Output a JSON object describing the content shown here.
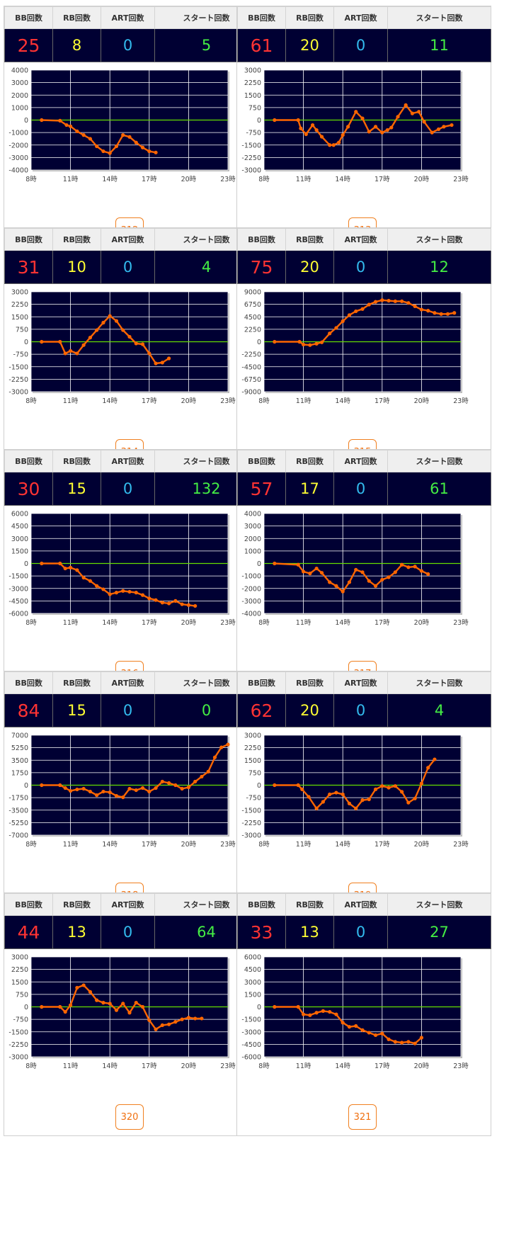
{
  "headers": {
    "bb": "BB回数",
    "rb": "RB回数",
    "art": "ART回数",
    "start": "スタート回数"
  },
  "x_ticks": [
    "8時",
    "11時",
    "14時",
    "17時",
    "20時",
    "23時"
  ],
  "colors": {
    "plot_bg": "#000033",
    "line": "#ff6600",
    "zero": "#66dd00",
    "grid": "#ffffff"
  },
  "machines": [
    {
      "id": "312",
      "bb": "25",
      "rb": "8",
      "art": "0",
      "start": "5",
      "chart_data": {
        "type": "line",
        "ylim": [
          -4000,
          4000
        ],
        "yticks": [
          4000,
          3000,
          2000,
          1000,
          0,
          -1000,
          -2000,
          -3000,
          -4000
        ],
        "x": [
          8.8,
          10.2,
          10.7,
          11,
          11.5,
          12,
          12.5,
          13,
          13.5,
          14,
          14.5,
          15,
          15.5,
          16,
          16.5,
          17,
          17.5
        ],
        "y": [
          0,
          -50,
          -400,
          -500,
          -900,
          -1200,
          -1500,
          -2100,
          -2500,
          -2650,
          -2100,
          -1200,
          -1350,
          -1800,
          -2200,
          -2500,
          -2600
        ]
      }
    },
    {
      "id": "313",
      "bb": "61",
      "rb": "20",
      "art": "0",
      "start": "11",
      "chart_data": {
        "type": "line",
        "ylim": [
          -3000,
          3000
        ],
        "yticks": [
          3000,
          2250,
          1500,
          750,
          0,
          -750,
          -1500,
          -2250,
          -3000
        ],
        "x": [
          8.8,
          10.6,
          10.8,
          11.2,
          11.7,
          12,
          12.4,
          13,
          13.3,
          13.7,
          14,
          14.4,
          15,
          15.5,
          16,
          16.5,
          17,
          17.4,
          17.7,
          18.2,
          18.8,
          19.3,
          19.8,
          20.2,
          20.8,
          21.3,
          21.7,
          22.3
        ],
        "y": [
          0,
          0,
          -500,
          -850,
          -300,
          -600,
          -1000,
          -1500,
          -1500,
          -1350,
          -900,
          -400,
          500,
          100,
          -700,
          -400,
          -750,
          -600,
          -450,
          200,
          900,
          400,
          500,
          -100,
          -750,
          -550,
          -400,
          -300
        ]
      }
    },
    {
      "id": "314",
      "bb": "31",
      "rb": "10",
      "art": "0",
      "start": "4",
      "chart_data": {
        "type": "line",
        "ylim": [
          -3000,
          3000
        ],
        "yticks": [
          3000,
          2250,
          1500,
          750,
          0,
          -750,
          -1500,
          -2250,
          -3000
        ],
        "x": [
          8.8,
          10.2,
          10.6,
          11,
          11.5,
          12,
          12.5,
          13,
          13.5,
          14,
          14.5,
          15,
          15.5,
          16,
          16.5,
          17,
          17.5,
          18,
          18.5
        ],
        "y": [
          0,
          0,
          -700,
          -550,
          -700,
          -200,
          250,
          700,
          1150,
          1550,
          1250,
          700,
          300,
          -100,
          -150,
          -700,
          -1300,
          -1250,
          -1000
        ]
      }
    },
    {
      "id": "315",
      "bb": "75",
      "rb": "20",
      "art": "0",
      "start": "12",
      "chart_data": {
        "type": "line",
        "ylim": [
          -9000,
          9000
        ],
        "yticks": [
          9000,
          6750,
          4500,
          2250,
          0,
          -2250,
          -4500,
          -6750,
          -9000
        ],
        "x": [
          8.8,
          10.7,
          11,
          11.5,
          12,
          12.4,
          13,
          13.5,
          14,
          14.5,
          15,
          15.5,
          16,
          16.5,
          17,
          17.5,
          18,
          18.5,
          19,
          19.5,
          20,
          20.5,
          21,
          21.5,
          22,
          22.5
        ],
        "y": [
          0,
          0,
          -500,
          -600,
          -350,
          -100,
          1500,
          2500,
          3700,
          4800,
          5500,
          5900,
          6700,
          7200,
          7500,
          7400,
          7300,
          7300,
          7000,
          6400,
          5800,
          5600,
          5200,
          5000,
          5000,
          5200
        ]
      }
    },
    {
      "id": "316",
      "bb": "30",
      "rb": "15",
      "art": "0",
      "start": "132",
      "chart_data": {
        "type": "line",
        "ylim": [
          -6000,
          6000
        ],
        "yticks": [
          6000,
          4500,
          3000,
          1500,
          0,
          -1500,
          -3000,
          -4500,
          -6000
        ],
        "x": [
          8.8,
          10.2,
          10.6,
          11,
          11.5,
          12,
          12.5,
          13,
          13.5,
          14,
          14.5,
          15,
          15.5,
          16,
          16.5,
          17,
          17.5,
          18,
          18.5,
          19,
          19.5,
          20,
          20.5
        ],
        "y": [
          0,
          0,
          -600,
          -500,
          -800,
          -1700,
          -2100,
          -2700,
          -3100,
          -3700,
          -3500,
          -3300,
          -3400,
          -3500,
          -3800,
          -4200,
          -4400,
          -4700,
          -4800,
          -4500,
          -4900,
          -5000,
          -5100
        ]
      }
    },
    {
      "id": "317",
      "bb": "57",
      "rb": "17",
      "art": "0",
      "start": "61",
      "chart_data": {
        "type": "line",
        "ylim": [
          -4000,
          4000
        ],
        "yticks": [
          4000,
          3000,
          2000,
          1000,
          0,
          -1000,
          -2000,
          -3000,
          -4000
        ],
        "x": [
          8.8,
          10.6,
          11,
          11.5,
          12,
          12.4,
          13,
          13.5,
          14,
          14.5,
          15,
          15.5,
          16,
          16.5,
          17,
          17.5,
          18,
          18.5,
          19,
          19.5,
          20,
          20.5
        ],
        "y": [
          0,
          -100,
          -650,
          -800,
          -400,
          -750,
          -1500,
          -1800,
          -2250,
          -1500,
          -500,
          -700,
          -1400,
          -1800,
          -1300,
          -1100,
          -700,
          -100,
          -300,
          -250,
          -600,
          -850
        ]
      }
    },
    {
      "id": "318",
      "bb": "84",
      "rb": "15",
      "art": "0",
      "start": "0",
      "chart_data": {
        "type": "line",
        "ylim": [
          -7000,
          7000
        ],
        "yticks": [
          7000,
          5250,
          3500,
          1750,
          0,
          -1750,
          -3500,
          -5250,
          -7000
        ],
        "x": [
          8.8,
          10.2,
          10.6,
          11,
          11.5,
          12,
          12.5,
          13,
          13.5,
          14,
          14.5,
          15,
          15.5,
          16,
          16.5,
          17,
          17.5,
          18,
          18.5,
          19,
          19.5,
          20,
          20.5,
          21,
          21.5,
          22,
          22.5,
          23
        ],
        "y": [
          0,
          0,
          -400,
          -800,
          -600,
          -500,
          -900,
          -1400,
          -900,
          -1000,
          -1500,
          -1700,
          -500,
          -700,
          -400,
          -900,
          -400,
          500,
          300,
          0,
          -500,
          -300,
          500,
          1200,
          1900,
          3900,
          5300,
          5700
        ]
      }
    },
    {
      "id": "319",
      "bb": "62",
      "rb": "20",
      "art": "0",
      "start": "4",
      "chart_data": {
        "type": "line",
        "ylim": [
          -3000,
          3000
        ],
        "yticks": [
          3000,
          2250,
          1500,
          750,
          0,
          -750,
          -1500,
          -2250,
          -3000
        ],
        "x": [
          8.8,
          10.6,
          10.9,
          11.4,
          12,
          12.5,
          13,
          13.5,
          14,
          14.5,
          15,
          15.5,
          16,
          16.5,
          17,
          17.5,
          18,
          18.5,
          19,
          19.5,
          20,
          20.5,
          21
        ],
        "y": [
          0,
          0,
          -250,
          -700,
          -1400,
          -1000,
          -550,
          -450,
          -550,
          -1100,
          -1400,
          -900,
          -850,
          -250,
          -50,
          -150,
          -50,
          -400,
          -1050,
          -800,
          100,
          1050,
          1550
        ]
      }
    },
    {
      "id": "320",
      "bb": "44",
      "rb": "13",
      "art": "0",
      "start": "64",
      "chart_data": {
        "type": "line",
        "ylim": [
          -3000,
          3000
        ],
        "yticks": [
          3000,
          2250,
          1500,
          750,
          0,
          -750,
          -1500,
          -2250,
          -3000
        ],
        "x": [
          8.8,
          10.2,
          10.6,
          11,
          11.5,
          12,
          12.5,
          13,
          13.5,
          14,
          14.5,
          15,
          15.5,
          16,
          16.5,
          17,
          17.5,
          18,
          18.5,
          19,
          19.5,
          20,
          20.5,
          21
        ],
        "y": [
          0,
          0,
          -300,
          100,
          1150,
          1300,
          900,
          400,
          250,
          200,
          -200,
          200,
          -350,
          250,
          0,
          -800,
          -1350,
          -1100,
          -1050,
          -900,
          -750,
          -650,
          -700,
          -700
        ]
      }
    },
    {
      "id": "321",
      "bb": "33",
      "rb": "13",
      "art": "0",
      "start": "27",
      "chart_data": {
        "type": "line",
        "ylim": [
          -6000,
          6000
        ],
        "yticks": [
          6000,
          4500,
          3000,
          1500,
          0,
          -1500,
          -3000,
          -4500,
          -6000
        ],
        "x": [
          8.8,
          10.6,
          11,
          11.5,
          12,
          12.5,
          13,
          13.5,
          14,
          14.5,
          15,
          15.5,
          16,
          16.5,
          17,
          17.5,
          18,
          18.5,
          19,
          19.5,
          20
        ],
        "y": [
          0,
          0,
          -900,
          -1000,
          -700,
          -500,
          -600,
          -900,
          -1900,
          -2400,
          -2300,
          -2800,
          -3100,
          -3400,
          -3200,
          -3900,
          -4200,
          -4300,
          -4200,
          -4400,
          -3700
        ]
      }
    }
  ]
}
